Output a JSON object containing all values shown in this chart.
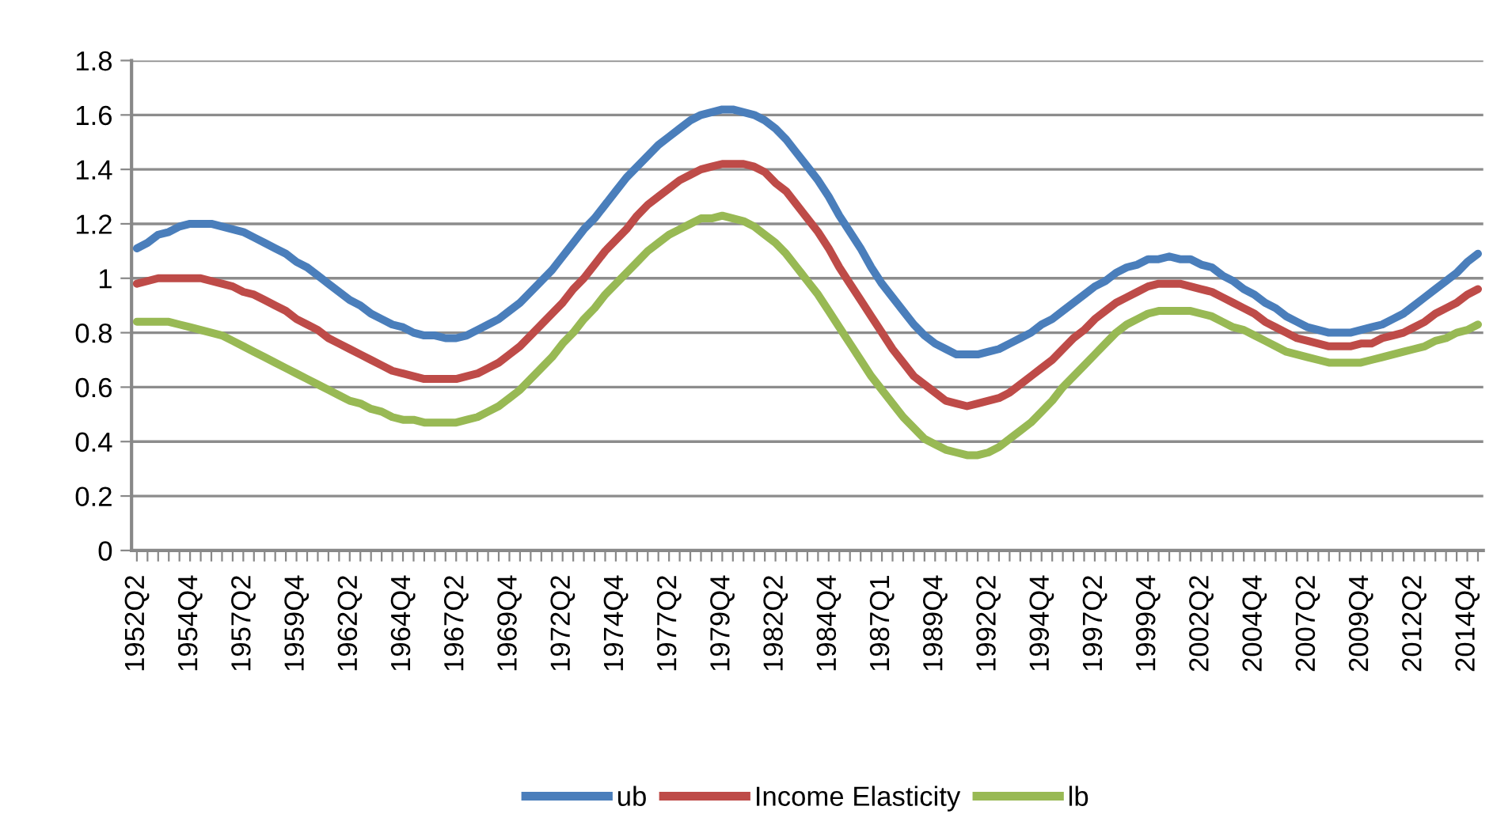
{
  "chart_data": {
    "type": "line",
    "categories": [
      "1952Q2",
      null,
      null,
      null,
      null,
      "1954Q4",
      null,
      null,
      null,
      null,
      "1957Q2",
      null,
      null,
      null,
      null,
      "1959Q4",
      null,
      null,
      null,
      null,
      "1962Q2",
      null,
      null,
      null,
      null,
      "1964Q4",
      null,
      null,
      null,
      null,
      "1967Q2",
      null,
      null,
      null,
      null,
      "1969Q4",
      null,
      null,
      null,
      null,
      "1972Q2",
      null,
      null,
      null,
      null,
      "1974Q4",
      null,
      null,
      null,
      null,
      "1977Q2",
      null,
      null,
      null,
      null,
      "1979Q4",
      null,
      null,
      null,
      null,
      "1982Q2",
      null,
      null,
      null,
      null,
      "1984Q4",
      null,
      null,
      null,
      null,
      "1987Q1",
      null,
      null,
      null,
      null,
      "1989Q4",
      null,
      null,
      null,
      null,
      "1992Q2",
      null,
      null,
      null,
      null,
      "1994Q4",
      null,
      null,
      null,
      null,
      "1997Q2",
      null,
      null,
      null,
      null,
      "1999Q4",
      null,
      null,
      null,
      null,
      "2002Q2",
      null,
      null,
      null,
      null,
      "2004Q4",
      null,
      null,
      null,
      null,
      "2007Q2",
      null,
      null,
      null,
      null,
      "2009Q4",
      null,
      null,
      null,
      null,
      "2012Q2",
      null,
      null,
      null,
      null,
      "2014Q4",
      null
    ],
    "series": [
      {
        "name": "ub",
        "color": "#4a7ebb",
        "values": [
          1.11,
          1.13,
          1.16,
          1.17,
          1.19,
          1.2,
          1.2,
          1.2,
          1.19,
          1.18,
          1.17,
          1.15,
          1.13,
          1.11,
          1.09,
          1.06,
          1.04,
          1.01,
          0.98,
          0.95,
          0.92,
          0.9,
          0.87,
          0.85,
          0.83,
          0.82,
          0.8,
          0.79,
          0.79,
          0.78,
          0.78,
          0.79,
          0.81,
          0.83,
          0.85,
          0.88,
          0.91,
          0.95,
          0.99,
          1.03,
          1.08,
          1.13,
          1.18,
          1.22,
          1.27,
          1.32,
          1.37,
          1.41,
          1.45,
          1.49,
          1.52,
          1.55,
          1.58,
          1.6,
          1.61,
          1.62,
          1.62,
          1.61,
          1.6,
          1.58,
          1.55,
          1.51,
          1.46,
          1.41,
          1.36,
          1.3,
          1.23,
          1.17,
          1.11,
          1.04,
          0.98,
          0.93,
          0.88,
          0.83,
          0.79,
          0.76,
          0.74,
          0.72,
          0.72,
          0.72,
          0.73,
          0.74,
          0.76,
          0.78,
          0.8,
          0.83,
          0.85,
          0.88,
          0.91,
          0.94,
          0.97,
          0.99,
          1.02,
          1.04,
          1.05,
          1.07,
          1.07,
          1.08,
          1.07,
          1.07,
          1.05,
          1.04,
          1.01,
          0.99,
          0.96,
          0.94,
          0.91,
          0.89,
          0.86,
          0.84,
          0.82,
          0.81,
          0.8,
          0.8,
          0.8,
          0.81,
          0.82,
          0.83,
          0.85,
          0.87,
          0.9,
          0.93,
          0.96,
          0.99,
          1.02,
          1.06,
          1.09
        ]
      },
      {
        "name": "Income Elasticity",
        "color": "#be4b48",
        "values": [
          0.98,
          0.99,
          1.0,
          1.0,
          1.0,
          1.0,
          1.0,
          0.99,
          0.98,
          0.97,
          0.95,
          0.94,
          0.92,
          0.9,
          0.88,
          0.85,
          0.83,
          0.81,
          0.78,
          0.76,
          0.74,
          0.72,
          0.7,
          0.68,
          0.66,
          0.65,
          0.64,
          0.63,
          0.63,
          0.63,
          0.63,
          0.64,
          0.65,
          0.67,
          0.69,
          0.72,
          0.75,
          0.79,
          0.83,
          0.87,
          0.91,
          0.96,
          1.0,
          1.05,
          1.1,
          1.14,
          1.18,
          1.23,
          1.27,
          1.3,
          1.33,
          1.36,
          1.38,
          1.4,
          1.41,
          1.42,
          1.42,
          1.42,
          1.41,
          1.39,
          1.35,
          1.32,
          1.27,
          1.22,
          1.17,
          1.11,
          1.04,
          0.98,
          0.92,
          0.86,
          0.8,
          0.74,
          0.69,
          0.64,
          0.61,
          0.58,
          0.55,
          0.54,
          0.53,
          0.54,
          0.55,
          0.56,
          0.58,
          0.61,
          0.64,
          0.67,
          0.7,
          0.74,
          0.78,
          0.81,
          0.85,
          0.88,
          0.91,
          0.93,
          0.95,
          0.97,
          0.98,
          0.98,
          0.98,
          0.97,
          0.96,
          0.95,
          0.93,
          0.91,
          0.89,
          0.87,
          0.84,
          0.82,
          0.8,
          0.78,
          0.77,
          0.76,
          0.75,
          0.75,
          0.75,
          0.76,
          0.76,
          0.78,
          0.79,
          0.8,
          0.82,
          0.84,
          0.87,
          0.89,
          0.91,
          0.94,
          0.96
        ]
      },
      {
        "name": "lb",
        "color": "#98b954",
        "values": [
          0.84,
          0.84,
          0.84,
          0.84,
          0.83,
          0.82,
          0.81,
          0.8,
          0.79,
          0.77,
          0.75,
          0.73,
          0.71,
          0.69,
          0.67,
          0.65,
          0.63,
          0.61,
          0.59,
          0.57,
          0.55,
          0.54,
          0.52,
          0.51,
          0.49,
          0.48,
          0.48,
          0.47,
          0.47,
          0.47,
          0.47,
          0.48,
          0.49,
          0.51,
          0.53,
          0.56,
          0.59,
          0.63,
          0.67,
          0.71,
          0.76,
          0.8,
          0.85,
          0.89,
          0.94,
          0.98,
          1.02,
          1.06,
          1.1,
          1.13,
          1.16,
          1.18,
          1.2,
          1.22,
          1.22,
          1.23,
          1.22,
          1.21,
          1.19,
          1.16,
          1.13,
          1.09,
          1.04,
          0.99,
          0.94,
          0.88,
          0.82,
          0.76,
          0.7,
          0.64,
          0.59,
          0.54,
          0.49,
          0.45,
          0.41,
          0.39,
          0.37,
          0.36,
          0.35,
          0.35,
          0.36,
          0.38,
          0.41,
          0.44,
          0.47,
          0.51,
          0.55,
          0.6,
          0.64,
          0.68,
          0.72,
          0.76,
          0.8,
          0.83,
          0.85,
          0.87,
          0.88,
          0.88,
          0.88,
          0.88,
          0.87,
          0.86,
          0.84,
          0.82,
          0.81,
          0.79,
          0.77,
          0.75,
          0.73,
          0.72,
          0.71,
          0.7,
          0.69,
          0.69,
          0.69,
          0.69,
          0.7,
          0.71,
          0.72,
          0.73,
          0.74,
          0.75,
          0.77,
          0.78,
          0.8,
          0.81,
          0.83
        ]
      }
    ],
    "ylim": [
      0,
      1.8
    ],
    "yticks": [
      0,
      0.2,
      0.4,
      0.6,
      0.8,
      1,
      1.2,
      1.4,
      1.6,
      1.8
    ],
    "grid": "y",
    "legend": "bottom",
    "marker": "none",
    "line_style": "solid"
  }
}
